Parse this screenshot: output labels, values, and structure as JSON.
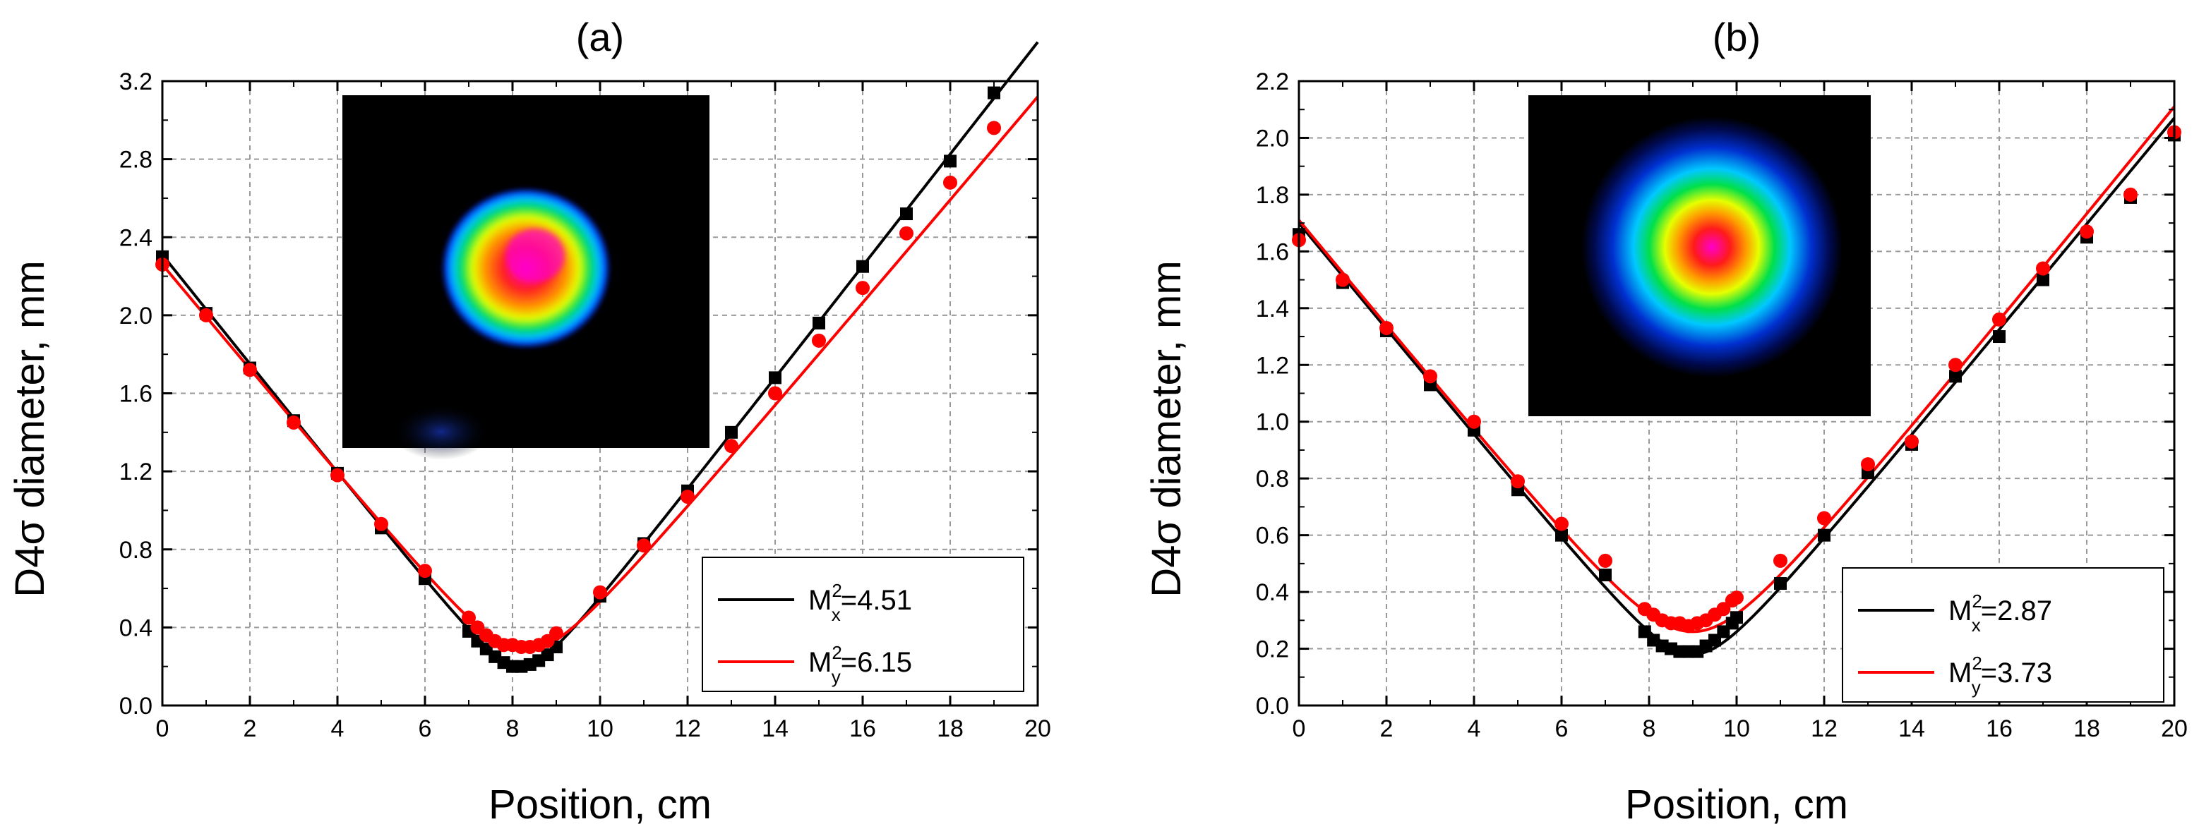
{
  "colors": {
    "series_x": "#000000",
    "series_y": "#ff0000",
    "grid": "#9a9a9a",
    "inset_bg": "#000000"
  },
  "chart_data": [
    {
      "type": "scatter",
      "title": "(a)",
      "xlabel": "Position, cm",
      "ylabel": "D4σ diameter, mm",
      "xlim": [
        0,
        20
      ],
      "ylim": [
        0,
        3.2
      ],
      "xticks": [
        0,
        2,
        4,
        6,
        8,
        10,
        12,
        14,
        16,
        18,
        20
      ],
      "yticks": [
        0.0,
        0.4,
        0.8,
        1.2,
        1.6,
        2.0,
        2.4,
        2.8,
        3.2
      ],
      "ytick_labels": [
        "0.0",
        "0.4",
        "0.8",
        "1.2",
        "1.6",
        "2.0",
        "2.4",
        "2.8",
        "3.2"
      ],
      "grid": true,
      "legend_position": "bottom-right",
      "inset": "beam-profile-image",
      "series": [
        {
          "name_main": "M",
          "name_sup": "2",
          "name_sub": "x",
          "name_value": "=4.51",
          "marker": "square",
          "color": "#000000",
          "x": [
            0,
            1,
            2,
            3,
            4,
            5,
            6,
            7,
            7.2,
            7.4,
            7.6,
            7.8,
            8,
            8.2,
            8.4,
            8.6,
            8.8,
            9,
            10,
            11,
            12,
            13,
            14,
            15,
            16,
            17,
            18,
            19
          ],
          "y": [
            2.3,
            2.01,
            1.73,
            1.46,
            1.19,
            0.91,
            0.65,
            0.38,
            0.33,
            0.29,
            0.25,
            0.22,
            0.2,
            0.2,
            0.21,
            0.23,
            0.26,
            0.3,
            0.56,
            0.83,
            1.1,
            1.4,
            1.68,
            1.96,
            2.25,
            2.52,
            2.79,
            3.14
          ],
          "fit_x": [
            0,
            8.2,
            20
          ],
          "fit_y": [
            2.31,
            0.2,
            3.4
          ]
        },
        {
          "name_main": "M",
          "name_sup": "2",
          "name_sub": "y",
          "name_value": "=6.15",
          "marker": "circle",
          "color": "#ff0000",
          "x": [
            0,
            1,
            2,
            3,
            4,
            5,
            6,
            7,
            7.2,
            7.4,
            7.6,
            7.8,
            8,
            8.2,
            8.4,
            8.6,
            8.8,
            9,
            10,
            11,
            12,
            13,
            14,
            15,
            16,
            17,
            18,
            19
          ],
          "y": [
            2.26,
            2.0,
            1.72,
            1.45,
            1.18,
            0.93,
            0.69,
            0.45,
            0.4,
            0.36,
            0.33,
            0.31,
            0.31,
            0.3,
            0.3,
            0.31,
            0.33,
            0.37,
            0.58,
            0.82,
            1.07,
            1.33,
            1.6,
            1.87,
            2.14,
            2.42,
            2.68,
            2.96
          ],
          "fit_x": [
            0,
            8.3,
            20
          ],
          "fit_y": [
            2.26,
            0.28,
            3.12
          ]
        }
      ]
    },
    {
      "type": "scatter",
      "title": "(b)",
      "xlabel": "Position, cm",
      "ylabel": "D4σ diameter, mm",
      "xlim": [
        0,
        20
      ],
      "ylim": [
        0,
        2.2
      ],
      "xticks": [
        0,
        2,
        4,
        6,
        8,
        10,
        12,
        14,
        16,
        18,
        20
      ],
      "yticks": [
        0.0,
        0.2,
        0.4,
        0.6,
        0.8,
        1.0,
        1.2,
        1.4,
        1.6,
        1.8,
        2.0,
        2.2
      ],
      "ytick_labels": [
        "0.0",
        "0.2",
        "0.4",
        "0.6",
        "0.8",
        "1.0",
        "1.2",
        "1.4",
        "1.6",
        "1.8",
        "2.0",
        "2.2"
      ],
      "grid": true,
      "legend_position": "bottom-right",
      "inset": "beam-profile-image",
      "series": [
        {
          "name_main": "M",
          "name_sup": "2",
          "name_sub": "x",
          "name_value": "=2.87",
          "marker": "square",
          "color": "#000000",
          "x": [
            0,
            1,
            2,
            3,
            4,
            5,
            6,
            7,
            7.9,
            8.1,
            8.3,
            8.5,
            8.7,
            8.9,
            9.1,
            9.3,
            9.5,
            9.7,
            9.9,
            10,
            11,
            12,
            13,
            14,
            15,
            16,
            17,
            18,
            19,
            20
          ],
          "y": [
            1.66,
            1.49,
            1.32,
            1.13,
            0.97,
            0.76,
            0.6,
            0.46,
            0.26,
            0.23,
            0.21,
            0.2,
            0.19,
            0.19,
            0.19,
            0.21,
            0.23,
            0.26,
            0.29,
            0.31,
            0.43,
            0.6,
            0.82,
            0.92,
            1.16,
            1.3,
            1.5,
            1.65,
            1.79,
            2.01
          ],
          "fit_x": [
            0,
            9.0,
            20
          ],
          "fit_y": [
            1.7,
            0.18,
            2.07
          ]
        },
        {
          "name_main": "M",
          "name_sup": "2",
          "name_sub": "y",
          "name_value": "=3.73",
          "marker": "circle",
          "color": "#ff0000",
          "x": [
            0,
            1,
            2,
            3,
            4,
            5,
            6,
            7,
            7.9,
            8.1,
            8.3,
            8.5,
            8.7,
            8.9,
            9.1,
            9.3,
            9.5,
            9.7,
            9.9,
            10,
            11,
            12,
            13,
            14,
            15,
            16,
            17,
            18,
            19,
            20
          ],
          "y": [
            1.64,
            1.5,
            1.33,
            1.16,
            1.0,
            0.79,
            0.64,
            0.51,
            0.34,
            0.32,
            0.3,
            0.29,
            0.29,
            0.28,
            0.29,
            0.3,
            0.32,
            0.34,
            0.37,
            0.38,
            0.51,
            0.66,
            0.85,
            0.93,
            1.2,
            1.36,
            1.54,
            1.67,
            1.8,
            2.02
          ],
          "fit_x": [
            0,
            9.0,
            20
          ],
          "fit_y": [
            1.71,
            0.26,
            2.11
          ]
        }
      ]
    }
  ]
}
